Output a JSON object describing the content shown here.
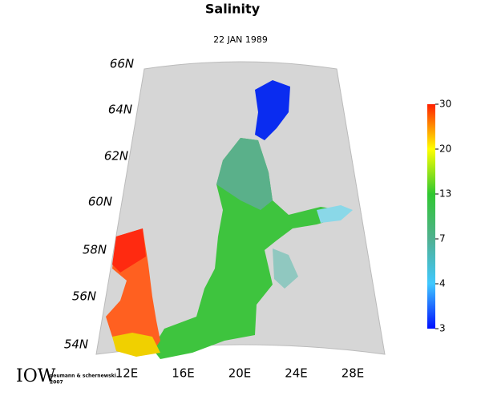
{
  "title": "Salinity",
  "date": "22 JAN 1989",
  "latitude_labels": [
    "66N",
    "64N",
    "62N",
    "60N",
    "58N",
    "56N",
    "54N"
  ],
  "longitude_labels": [
    "12E",
    "16E",
    "20E",
    "24E",
    "28E"
  ],
  "colorbar": {
    "ticks": [
      3,
      4,
      7,
      13,
      20,
      30
    ],
    "colors": [
      "#0010ff",
      "#40c8ff",
      "#50b090",
      "#30c830",
      "#ffff00",
      "#ff2000"
    ]
  },
  "credit": {
    "logo": "IOW",
    "authors": "neumann & schernewski",
    "year": "2007"
  }
}
